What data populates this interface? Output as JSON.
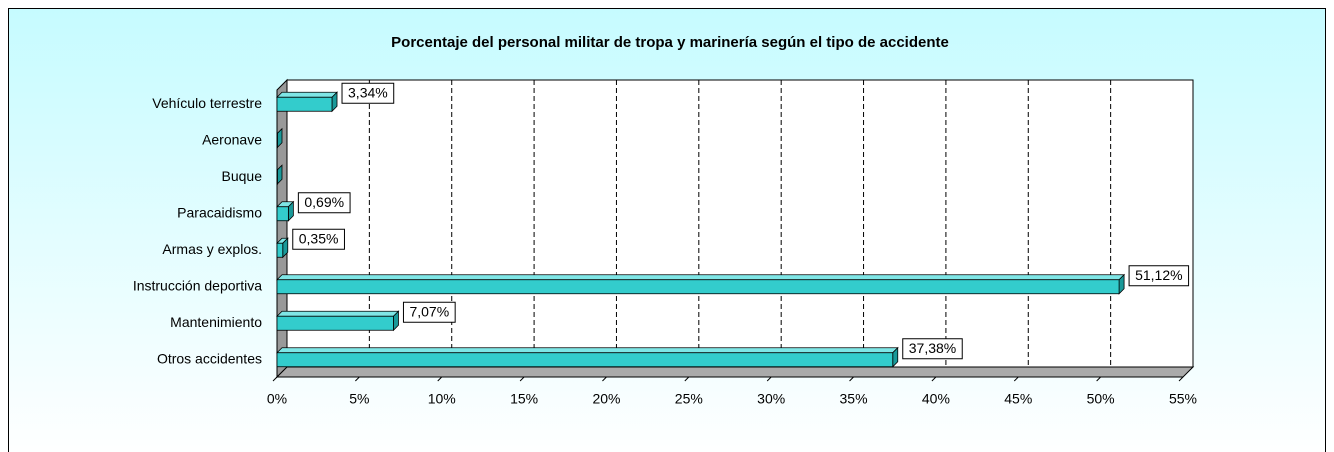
{
  "chart_data": {
    "type": "bar3d_horizontal",
    "title": "Porcentaje del personal militar de tropa y marinería según el tipo de accidente",
    "categories": [
      "Vehículo terrestre",
      "Aeronave",
      "Buque",
      "Paracaidismo",
      "Armas y explos.",
      "Instrucción deportiva",
      "Mantenimiento",
      "Otros accidentes"
    ],
    "values": [
      3.34,
      0,
      0,
      0.69,
      0.35,
      51.12,
      7.07,
      37.38
    ],
    "value_labels": [
      "3,34%",
      null,
      null,
      "0,69%",
      "0,35%",
      "51,12%",
      "7,07%",
      "37,38%"
    ],
    "color": "#33cccc",
    "xlim": [
      0,
      55
    ],
    "xticks": [
      {
        "value": 0,
        "label": "0%"
      },
      {
        "value": 5,
        "label": "5%"
      },
      {
        "value": 10,
        "label": "10%"
      },
      {
        "value": 15,
        "label": "15%"
      },
      {
        "value": 20,
        "label": "20%"
      },
      {
        "value": 25,
        "label": "25%"
      },
      {
        "value": 30,
        "label": "30%"
      },
      {
        "value": 35,
        "label": "35%"
      },
      {
        "value": 40,
        "label": "40%"
      },
      {
        "value": 45,
        "label": "45%"
      },
      {
        "value": 50,
        "label": "50%"
      },
      {
        "value": 55,
        "label": "55%"
      }
    ],
    "grid": true
  }
}
